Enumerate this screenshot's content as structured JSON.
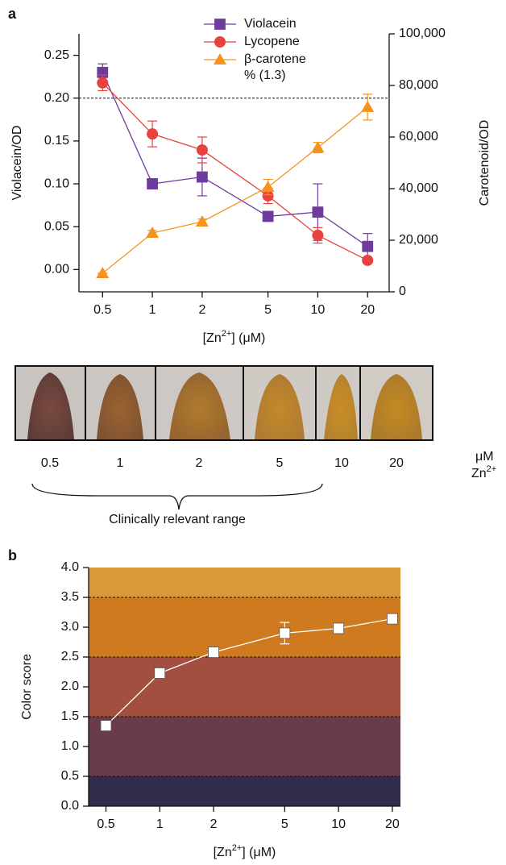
{
  "panel_labels": [
    "a",
    "b"
  ],
  "chart_data": [
    {
      "type": "line",
      "xlog": true,
      "x": [
        0.5,
        1,
        2,
        5,
        10,
        20
      ],
      "xlim": [
        0.36,
        27
      ],
      "xticks": [
        0.5,
        1,
        2,
        5,
        10,
        20
      ],
      "xlabel": {
        "pre": "[Zn",
        "sup": "2+",
        "post": "] (μM)"
      },
      "ylabel": "Violacein/OD",
      "y2label": "Carotenoid/OD",
      "ylim": [
        -0.026,
        0.275
      ],
      "yticks": [
        {
          "value": 0,
          "label": "0.00"
        },
        0.05,
        {
          "value": 0.1,
          "label": "0.10"
        },
        0.15,
        {
          "value": 0.2,
          "label": "0.20"
        },
        0.25
      ],
      "y2lim": [
        0,
        100000
      ],
      "y2ticks": [
        0,
        {
          "value": 20000,
          "label": "20,000"
        },
        {
          "value": 40000,
          "label": "40,000"
        },
        {
          "value": 60000,
          "label": "60,000"
        },
        {
          "value": 80000,
          "label": "80,000"
        },
        {
          "value": 100000,
          "label": "100,000"
        }
      ],
      "hline": 0.2,
      "legend": "top",
      "annotation": "% (1.3)",
      "series": [
        {
          "name": "Violacein",
          "color": "#6f3c9e",
          "marker": "square",
          "axis": "y",
          "values": [
            0.23,
            0.1,
            0.108,
            0.062,
            0.067,
            0.027
          ],
          "errors": [
            0.01,
            0.006,
            0.022,
            0.003,
            0.033,
            0.015
          ]
        },
        {
          "name": "Lycopene",
          "color": "#e8423f",
          "marker": "circle",
          "axis": "y2",
          "values": [
            81000,
            61200,
            55000,
            37200,
            21900,
            12200
          ],
          "errors": [
            3000,
            5000,
            5000,
            3000,
            3000,
            1000
          ]
        },
        {
          "name": "β-carotene",
          "color": "#f6921e",
          "marker": "triangle",
          "axis": "y2",
          "values": [
            7200,
            22800,
            27200,
            40600,
            55900,
            71600
          ],
          "errors": [
            0,
            1000,
            1000,
            3000,
            2000,
            5000
          ]
        }
      ]
    },
    {
      "type": "line",
      "xlog": true,
      "x": [
        0.5,
        1,
        2,
        5,
        10,
        20
      ],
      "xlim": [
        0.4,
        22.2
      ],
      "xticks": [
        0.5,
        1,
        2,
        5,
        10,
        20
      ],
      "xlabel": {
        "pre": "[Zn",
        "sup": "2+",
        "post": "] (μM)"
      },
      "ylabel": "Color score",
      "ylim": [
        0,
        4
      ],
      "yticks": [
        {
          "value": 0,
          "label": "0.0"
        },
        0.5,
        {
          "value": 1,
          "label": "1.0"
        },
        1.5,
        {
          "value": 2,
          "label": "2.0"
        },
        2.5,
        {
          "value": 3,
          "label": "3.0"
        },
        3.5,
        {
          "value": 4,
          "label": "4.0"
        }
      ],
      "bands": [
        {
          "from": 0,
          "to": 0.5,
          "color": "#2f2c4c"
        },
        {
          "from": 0.5,
          "to": 1.5,
          "color": "#6a3b48"
        },
        {
          "from": 1.5,
          "to": 2.5,
          "color": "#a34f3f"
        },
        {
          "from": 2.5,
          "to": 3.5,
          "color": "#cf7a1f"
        },
        {
          "from": 3.5,
          "to": 4,
          "color": "#db9a37"
        }
      ],
      "series": [
        {
          "color": "#ffffff",
          "marker": "square",
          "values": [
            1.35,
            2.23,
            2.58,
            2.9,
            2.98,
            3.14
          ],
          "errors": [
            0,
            0,
            0,
            0.18,
            0,
            0
          ]
        }
      ]
    }
  ],
  "tubes": {
    "labels": [
      "0.5",
      "1",
      "2",
      "5",
      "10",
      "20"
    ],
    "unit": "μM",
    "ion": {
      "base": "Zn",
      "sup": "2+"
    },
    "bracket_label": "Clinically relevant range"
  }
}
